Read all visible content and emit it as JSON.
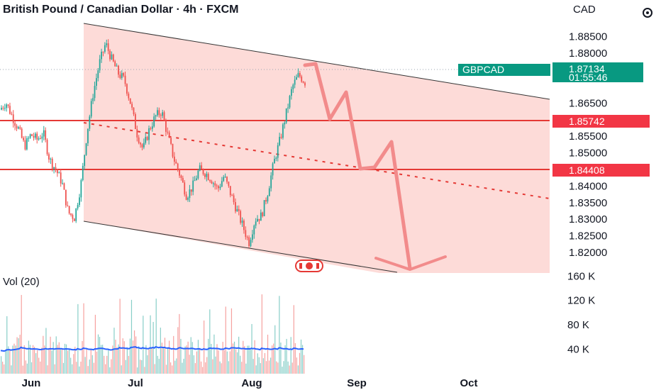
{
  "header": {
    "title": "British Pound / Canadian Dollar · 4h · FXCM",
    "currency": "CAD"
  },
  "colors": {
    "up": "#26a69a",
    "down": "#ef5350",
    "channel_fill": "#fdd9d6",
    "level_line": "#e53935",
    "projection": "#f28b8b",
    "price_tag": "#089981",
    "level_tag": "#f23645",
    "volume_ma": "#2962ff"
  },
  "chart_data": {
    "type": "candlestick",
    "symbol": "GBPCAD",
    "timeframe": "4h",
    "source": "FXCM",
    "price_axis": {
      "ylim": [
        1.8138,
        1.889
      ],
      "ticks": [
        "1.88500",
        "1.88000",
        "1.87500",
        "1.86500",
        "1.86000",
        "1.85500",
        "1.85000",
        "1.84000",
        "1.83500",
        "1.83000",
        "1.82500",
        "1.82000"
      ]
    },
    "time_axis": {
      "labels": [
        "Jun",
        "Jul",
        "Aug",
        "Sep",
        "Oct"
      ]
    },
    "last_price": {
      "label": "GBPCAD",
      "value": "1.87134",
      "countdown": "01:55:46"
    },
    "levels": [
      {
        "label": "1.85742",
        "value": 1.85742
      },
      {
        "label": "1.84408",
        "value": 1.84408
      }
    ],
    "price_path": [
      1.863,
      1.8652,
      1.861,
      1.8572,
      1.852,
      1.8555,
      1.854,
      1.856,
      1.848,
      1.845,
      1.841,
      1.832,
      1.8305,
      1.84,
      1.856,
      1.868,
      1.877,
      1.883,
      1.878,
      1.874,
      1.872,
      1.865,
      1.856,
      1.851,
      1.857,
      1.861,
      1.8625,
      1.855,
      1.848,
      1.843,
      1.837,
      1.84,
      1.845,
      1.844,
      1.842,
      1.839,
      1.843,
      1.838,
      1.833,
      1.828,
      1.823,
      1.83,
      1.831,
      1.838,
      1.847,
      1.854,
      1.862,
      1.87,
      1.8735,
      1.8713
    ],
    "channel": {
      "upper": [
        [
          1.8858,
          1.8635
        ]
      ],
      "lower": [
        [
          1.8297,
          1.8138
        ]
      ]
    },
    "volume": {
      "label": "Vol (20)",
      "ticks": [
        "160 K",
        "120 K",
        "80 K",
        "40 K"
      ],
      "ylim": [
        0,
        165
      ]
    }
  }
}
